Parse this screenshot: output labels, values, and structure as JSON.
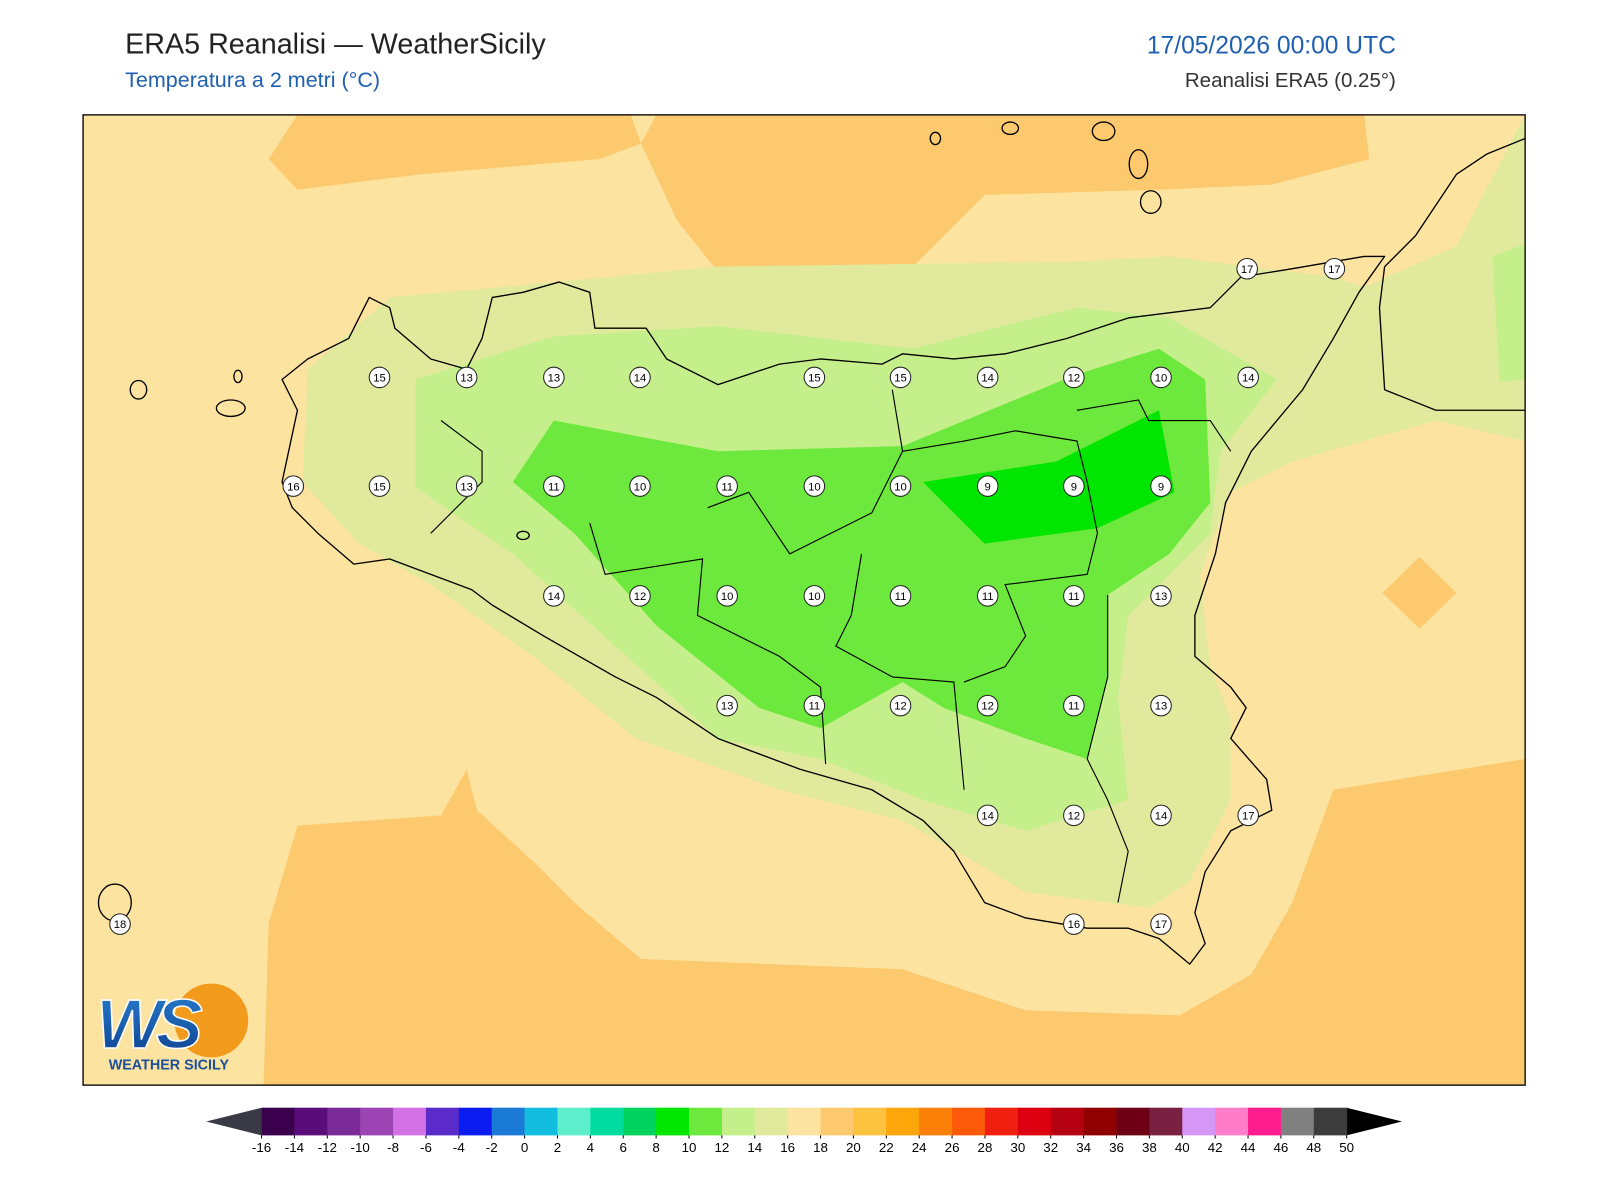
{
  "header": {
    "title": "ERA5 Reanalisi — WeatherSicily",
    "subtitle": "Temperatura a 2 metri (°C)",
    "datetime": "17/05/2026 00:00 UTC",
    "source": "Reanalisi ERA5 (0.25°)"
  },
  "stations": [
    15,
    13,
    13,
    14,
    15,
    15,
    14,
    12,
    10,
    14,
    17,
    17,
    16,
    15,
    13,
    11,
    10,
    11,
    10,
    10,
    9,
    9,
    9,
    14,
    12,
    10,
    10,
    11,
    11,
    11,
    13,
    13,
    11,
    12,
    12,
    11,
    13,
    14,
    12,
    14,
    17,
    18,
    16,
    17
  ],
  "colorbar": {
    "ticks": [
      -16,
      -14,
      -12,
      -10,
      -8,
      -6,
      -4,
      -2,
      0,
      2,
      4,
      6,
      8,
      10,
      12,
      14,
      16,
      18,
      20,
      22,
      24,
      26,
      28,
      30,
      32,
      34,
      36,
      38,
      40,
      42,
      44,
      46,
      48,
      50
    ],
    "colors": [
      "#3a004e",
      "#5a0d7a",
      "#7b2a9a",
      "#9c44b4",
      "#d371e6",
      "#5a2bc9",
      "#0a1cf0",
      "#1a7ad6",
      "#12bde0",
      "#5deecc",
      "#00dca0",
      "#00d25f",
      "#00e600",
      "#6de83c",
      "#c4ef8a",
      "#e1ea9c",
      "#fde3a0",
      "#fcc96e",
      "#fcc240",
      "#fca60a",
      "#fc8008",
      "#fc5a08",
      "#f02010",
      "#dc0010",
      "#b40010",
      "#900000",
      "#6e0016",
      "#7a2040",
      "#d497f6",
      "#ff7cc8",
      "#ff1c8c",
      "#808080",
      "#3c3c3c"
    ],
    "under_color": "#3a3a44",
    "over_color": "#000000"
  },
  "logo": {
    "letters": "WS",
    "name": "WEATHER SICILY"
  }
}
